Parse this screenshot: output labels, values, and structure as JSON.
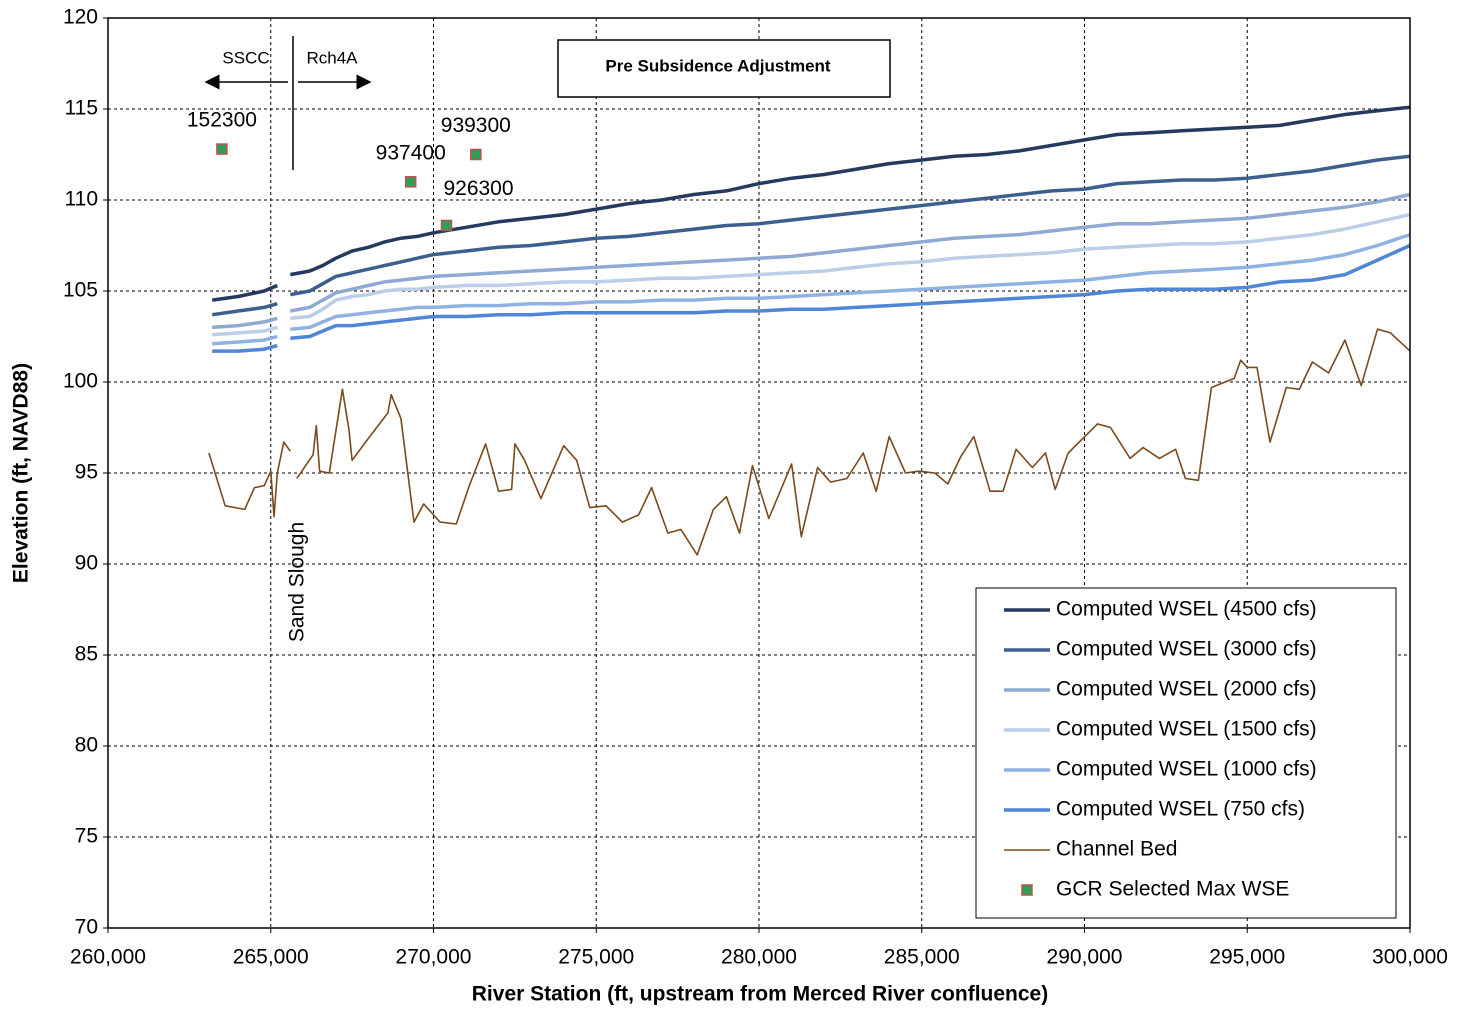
{
  "chart_data": {
    "type": "line",
    "xlabel": "River Station (ft, upstream from Merced River confluence)",
    "ylabel": "Elevation (ft, NAVD88)",
    "annotations": [
      "Pre Subsidence Adjustment",
      "SSCC",
      "Rch4A",
      "Sand Slough"
    ],
    "xlim": [
      260000,
      300000
    ],
    "xticks": [
      {
        "value": 260000,
        "label": "260,000"
      },
      {
        "value": 265000,
        "label": "265,000"
      },
      {
        "value": 270000,
        "label": "270,000"
      },
      {
        "value": 275000,
        "label": "275,000"
      },
      {
        "value": 280000,
        "label": "280,000"
      },
      {
        "value": 285000,
        "label": "285,000"
      },
      {
        "value": 290000,
        "label": "290,000"
      },
      {
        "value": 295000,
        "label": "295,000"
      },
      {
        "value": 300000,
        "label": "300,000"
      }
    ],
    "ylim": [
      70,
      120
    ],
    "yticks": [
      70,
      75,
      80,
      85,
      90,
      95,
      100,
      105,
      110,
      115,
      120
    ],
    "grid": true,
    "legend": "lower right",
    "x": [
      263200,
      264000,
      264800,
      265200,
      265400,
      265600,
      266200,
      266600,
      267000,
      267500,
      268000,
      268500,
      269000,
      269500,
      270000,
      271000,
      272000,
      273000,
      274000,
      275000,
      276000,
      277000,
      278000,
      279000,
      280000,
      281000,
      282000,
      283000,
      284000,
      285000,
      286000,
      287000,
      288000,
      289000,
      290000,
      291000,
      292000,
      293000,
      294000,
      295000,
      296000,
      297000,
      298000,
      299000,
      300000
    ],
    "series": [
      {
        "name": "Computed WSEL (4500 cfs)",
        "color": "#243a5e",
        "values": [
          104.5,
          104.7,
          105.0,
          105.3,
          null,
          105.9,
          106.1,
          106.4,
          106.8,
          107.2,
          107.4,
          107.7,
          107.9,
          108.0,
          108.2,
          108.5,
          108.8,
          109.0,
          109.2,
          109.5,
          109.8,
          110.0,
          110.3,
          110.5,
          110.9,
          111.2,
          111.4,
          111.7,
          112.0,
          112.2,
          112.4,
          112.5,
          112.7,
          113.0,
          113.3,
          113.6,
          113.7,
          113.8,
          113.9,
          114.0,
          114.1,
          114.4,
          114.7,
          114.9,
          115.1
        ]
      },
      {
        "name": "Computed WSEL (3000 cfs)",
        "color": "#3d5f8f",
        "values": [
          103.7,
          103.9,
          104.1,
          104.3,
          null,
          104.8,
          105.0,
          105.4,
          105.8,
          106.0,
          106.2,
          106.4,
          106.6,
          106.8,
          107.0,
          107.2,
          107.4,
          107.5,
          107.7,
          107.9,
          108.0,
          108.2,
          108.4,
          108.6,
          108.7,
          108.9,
          109.1,
          109.3,
          109.5,
          109.7,
          109.9,
          110.1,
          110.3,
          110.5,
          110.6,
          110.9,
          111.0,
          111.1,
          111.1,
          111.2,
          111.4,
          111.6,
          111.9,
          112.2,
          112.4
        ]
      },
      {
        "name": "Computed WSEL (2000 cfs)",
        "color": "#8fa9d4",
        "values": [
          103.0,
          103.1,
          103.3,
          103.5,
          null,
          103.9,
          104.1,
          104.5,
          104.9,
          105.1,
          105.3,
          105.5,
          105.6,
          105.7,
          105.8,
          105.9,
          106.0,
          106.1,
          106.2,
          106.3,
          106.4,
          106.5,
          106.6,
          106.7,
          106.8,
          106.9,
          107.1,
          107.3,
          107.5,
          107.7,
          107.9,
          108.0,
          108.1,
          108.3,
          108.5,
          108.7,
          108.7,
          108.8,
          108.9,
          109.0,
          109.2,
          109.4,
          109.6,
          109.9,
          110.3
        ]
      },
      {
        "name": "Computed WSEL (1500 cfs)",
        "color": "#bccde8",
        "values": [
          102.6,
          102.7,
          102.8,
          103.0,
          null,
          103.5,
          103.6,
          104.0,
          104.5,
          104.7,
          104.8,
          105.0,
          105.1,
          105.1,
          105.2,
          105.3,
          105.3,
          105.4,
          105.5,
          105.5,
          105.6,
          105.7,
          105.7,
          105.8,
          105.9,
          106.0,
          106.1,
          106.3,
          106.5,
          106.6,
          106.8,
          106.9,
          107.0,
          107.1,
          107.3,
          107.4,
          107.5,
          107.6,
          107.6,
          107.7,
          107.9,
          108.1,
          108.4,
          108.8,
          109.2
        ]
      },
      {
        "name": "Computed WSEL (1000 cfs)",
        "color": "#8fb2e2",
        "values": [
          102.1,
          102.2,
          102.3,
          102.5,
          null,
          102.9,
          103.0,
          103.3,
          103.6,
          103.7,
          103.8,
          103.9,
          104.0,
          104.1,
          104.1,
          104.2,
          104.2,
          104.3,
          104.3,
          104.4,
          104.4,
          104.5,
          104.5,
          104.6,
          104.6,
          104.7,
          104.8,
          104.9,
          105.0,
          105.1,
          105.2,
          105.3,
          105.4,
          105.5,
          105.6,
          105.8,
          106.0,
          106.1,
          106.2,
          106.3,
          106.5,
          106.7,
          107.0,
          107.5,
          108.1
        ]
      },
      {
        "name": "Computed WSEL (750 cfs)",
        "color": "#4f86d6",
        "values": [
          101.7,
          101.7,
          101.8,
          102.0,
          null,
          102.4,
          102.5,
          102.8,
          103.1,
          103.1,
          103.2,
          103.3,
          103.4,
          103.5,
          103.6,
          103.6,
          103.7,
          103.7,
          103.8,
          103.8,
          103.8,
          103.8,
          103.8,
          103.9,
          103.9,
          104.0,
          104.0,
          104.1,
          104.2,
          104.3,
          104.4,
          104.5,
          104.6,
          104.7,
          104.8,
          105.0,
          105.1,
          105.1,
          105.1,
          105.2,
          105.5,
          105.6,
          105.9,
          106.7,
          107.5
        ]
      },
      {
        "name": "Channel Bed",
        "color": "#7a4a1e",
        "thin": true,
        "x": [
          263100,
          263600,
          264200,
          264500,
          264800,
          265000,
          265100,
          265200,
          265400,
          265600,
          265700,
          265800,
          266300,
          266400,
          266500,
          266800,
          267200,
          267400,
          267500,
          268000,
          268600,
          268700,
          269000,
          269400,
          269700,
          270200,
          270700,
          271100,
          271600,
          272000,
          272400,
          272500,
          272800,
          273300,
          274000,
          274400,
          274800,
          275300,
          275800,
          276300,
          276700,
          277200,
          277600,
          278100,
          278600,
          279000,
          279400,
          279800,
          280300,
          281000,
          281300,
          281800,
          282200,
          282700,
          283200,
          283600,
          284000,
          284500,
          284900,
          285400,
          285800,
          286200,
          286600,
          287100,
          287500,
          287900,
          288400,
          288800,
          289100,
          289500,
          290400,
          290800,
          291400,
          291800,
          292300,
          292800,
          293100,
          293500,
          293900,
          294600,
          294800,
          295000,
          295300,
          295700,
          296200,
          296600,
          297000,
          297500,
          298000,
          298500,
          299000,
          299400,
          300000
        ],
        "values": [
          96.1,
          93.2,
          93.0,
          94.2,
          94.3,
          95.1,
          92.6,
          95.0,
          96.7,
          96.2,
          null,
          94.7,
          96.0,
          97.6,
          95.1,
          95.0,
          99.6,
          97.4,
          95.7,
          96.9,
          98.3,
          99.3,
          98.0,
          92.3,
          93.3,
          92.3,
          92.2,
          94.3,
          96.6,
          94.0,
          94.1,
          96.6,
          95.7,
          93.6,
          96.5,
          95.7,
          93.1,
          93.2,
          92.3,
          92.7,
          94.2,
          91.7,
          91.9,
          90.5,
          93.0,
          93.7,
          91.7,
          95.4,
          92.5,
          95.5,
          91.5,
          95.3,
          94.5,
          94.7,
          96.1,
          94.0,
          97.0,
          95.0,
          95.1,
          95.0,
          94.4,
          95.9,
          97.0,
          94.0,
          94.0,
          96.3,
          95.3,
          96.1,
          94.1,
          96.1,
          97.7,
          97.5,
          95.8,
          96.4,
          95.8,
          96.3,
          94.7,
          94.6,
          99.7,
          100.2,
          101.2,
          100.8,
          100.8,
          96.7,
          99.7,
          99.6,
          101.1,
          100.5,
          102.3,
          99.8,
          102.9,
          102.7,
          101.7
        ]
      },
      {
        "name": "GCR Selected Max WSE",
        "color": "#2ca05a",
        "edge": "#c0504d",
        "marker": "square",
        "x": [
          263500,
          269300,
          270400,
          271300
        ],
        "values": [
          112.8,
          111.0,
          108.6,
          112.5
        ],
        "labels": [
          "152300",
          "937400",
          "926300",
          "939300"
        ]
      }
    ]
  }
}
